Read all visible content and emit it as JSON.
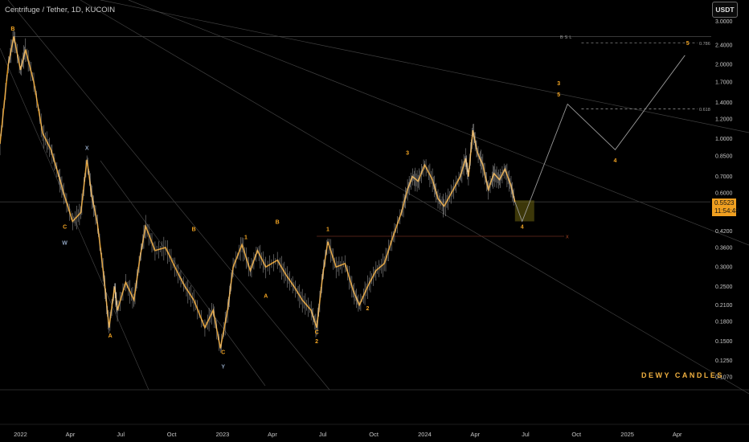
{
  "header": {
    "symbol_title": "Centrifuge / Tether, 1D, KUCOIN",
    "currency_button": "USDT"
  },
  "price_tag": {
    "price": "0.5523",
    "countdown": "11:54:48"
  },
  "watermark": "DEWY CANDLES",
  "colors": {
    "background": "#000000",
    "candle": "#f0a020",
    "wave_label": "#f5a623",
    "corrective_label": "#8fa3bf",
    "trendline": "#5a5a5a",
    "projection": "#9a9a9a"
  },
  "chart_data": {
    "type": "line",
    "scale": "log",
    "ylim": [
      0.095,
      3.1
    ],
    "xlim": [
      "2021-11-25",
      "2025-05-31"
    ],
    "y_ticks": [
      3.0,
      2.4,
      2.0,
      1.7,
      1.4,
      1.2,
      1.0,
      0.85,
      0.7,
      0.6,
      0.42,
      0.36,
      0.3,
      0.25,
      0.21,
      0.18,
      0.15,
      0.125,
      0.107
    ],
    "y_tick_labels": [
      "3.0000",
      "2.4000",
      "2.0000",
      "1.7000",
      "1.4000",
      "1.2000",
      "1.0000",
      "0.8500",
      "0.7000",
      "0.6000",
      "0.4200",
      "0.3600",
      "0.3000",
      "0.2500",
      "0.2100",
      "0.1800",
      "0.1500",
      "0.1250",
      "0.1070"
    ],
    "x_ticks": [
      {
        "label": "2022",
        "date": "2022-01-01"
      },
      {
        "label": "Apr",
        "date": "2022-04-01"
      },
      {
        "label": "Jul",
        "date": "2022-07-01"
      },
      {
        "label": "Oct",
        "date": "2022-10-01"
      },
      {
        "label": "2023",
        "date": "2023-01-01"
      },
      {
        "label": "Apr",
        "date": "2023-04-01"
      },
      {
        "label": "Jul",
        "date": "2023-07-01"
      },
      {
        "label": "Oct",
        "date": "2023-10-01"
      },
      {
        "label": "2024",
        "date": "2024-01-01"
      },
      {
        "label": "Apr",
        "date": "2024-04-01"
      },
      {
        "label": "Jul",
        "date": "2024-07-01"
      },
      {
        "label": "Oct",
        "date": "2024-10-01"
      },
      {
        "label": "2025",
        "date": "2025-01-01"
      },
      {
        "label": "Apr",
        "date": "2025-04-01"
      }
    ],
    "series": [
      {
        "values": [
          {
            "x": "2021-11-25",
            "y": 0.95
          },
          {
            "x": "2021-12-10",
            "y": 2.0
          },
          {
            "x": "2021-12-20",
            "y": 2.6
          },
          {
            "x": "2022-01-01",
            "y": 1.9
          },
          {
            "x": "2022-01-10",
            "y": 2.3
          },
          {
            "x": "2022-01-25",
            "y": 1.7
          },
          {
            "x": "2022-02-10",
            "y": 1.05
          },
          {
            "x": "2022-02-25",
            "y": 0.9
          },
          {
            "x": "2022-03-10",
            "y": 0.72
          },
          {
            "x": "2022-03-20",
            "y": 0.6
          },
          {
            "x": "2022-04-05",
            "y": 0.46
          },
          {
            "x": "2022-04-20",
            "y": 0.5
          },
          {
            "x": "2022-05-01",
            "y": 0.82
          },
          {
            "x": "2022-05-10",
            "y": 0.58
          },
          {
            "x": "2022-05-20",
            "y": 0.45
          },
          {
            "x": "2022-06-01",
            "y": 0.27
          },
          {
            "x": "2022-06-10",
            "y": 0.17
          },
          {
            "x": "2022-06-20",
            "y": 0.25
          },
          {
            "x": "2022-06-25",
            "y": 0.2
          },
          {
            "x": "2022-07-10",
            "y": 0.26
          },
          {
            "x": "2022-07-25",
            "y": 0.22
          },
          {
            "x": "2022-08-05",
            "y": 0.33
          },
          {
            "x": "2022-08-15",
            "y": 0.44
          },
          {
            "x": "2022-09-01",
            "y": 0.35
          },
          {
            "x": "2022-09-20",
            "y": 0.36
          },
          {
            "x": "2022-10-10",
            "y": 0.29
          },
          {
            "x": "2022-10-25",
            "y": 0.25
          },
          {
            "x": "2022-11-10",
            "y": 0.22
          },
          {
            "x": "2022-11-30",
            "y": 0.17
          },
          {
            "x": "2022-12-15",
            "y": 0.2
          },
          {
            "x": "2022-12-28",
            "y": 0.14
          },
          {
            "x": "2023-01-10",
            "y": 0.2
          },
          {
            "x": "2023-01-20",
            "y": 0.3
          },
          {
            "x": "2023-02-05",
            "y": 0.37
          },
          {
            "x": "2023-02-20",
            "y": 0.29
          },
          {
            "x": "2023-03-05",
            "y": 0.35
          },
          {
            "x": "2023-03-20",
            "y": 0.3
          },
          {
            "x": "2023-04-10",
            "y": 0.32
          },
          {
            "x": "2023-04-25",
            "y": 0.28
          },
          {
            "x": "2023-05-10",
            "y": 0.25
          },
          {
            "x": "2023-05-25",
            "y": 0.22
          },
          {
            "x": "2023-06-10",
            "y": 0.2
          },
          {
            "x": "2023-06-20",
            "y": 0.17
          },
          {
            "x": "2023-07-01",
            "y": 0.28
          },
          {
            "x": "2023-07-10",
            "y": 0.38
          },
          {
            "x": "2023-07-25",
            "y": 0.3
          },
          {
            "x": "2023-08-10",
            "y": 0.31
          },
          {
            "x": "2023-08-25",
            "y": 0.24
          },
          {
            "x": "2023-09-05",
            "y": 0.21
          },
          {
            "x": "2023-09-20",
            "y": 0.25
          },
          {
            "x": "2023-10-05",
            "y": 0.29
          },
          {
            "x": "2023-10-20",
            "y": 0.31
          },
          {
            "x": "2023-11-05",
            "y": 0.4
          },
          {
            "x": "2023-11-20",
            "y": 0.5
          },
          {
            "x": "2023-12-01",
            "y": 0.62
          },
          {
            "x": "2023-12-10",
            "y": 0.7
          },
          {
            "x": "2023-12-20",
            "y": 0.67
          },
          {
            "x": "2024-01-01",
            "y": 0.78
          },
          {
            "x": "2024-01-15",
            "y": 0.68
          },
          {
            "x": "2024-01-25",
            "y": 0.57
          },
          {
            "x": "2024-02-05",
            "y": 0.53
          },
          {
            "x": "2024-02-20",
            "y": 0.61
          },
          {
            "x": "2024-03-05",
            "y": 0.7
          },
          {
            "x": "2024-03-15",
            "y": 0.83
          },
          {
            "x": "2024-03-20",
            "y": 0.7
          },
          {
            "x": "2024-03-28",
            "y": 1.08
          },
          {
            "x": "2024-04-05",
            "y": 0.88
          },
          {
            "x": "2024-04-15",
            "y": 0.78
          },
          {
            "x": "2024-04-25",
            "y": 0.62
          },
          {
            "x": "2024-05-05",
            "y": 0.72
          },
          {
            "x": "2024-05-15",
            "y": 0.68
          },
          {
            "x": "2024-05-25",
            "y": 0.75
          },
          {
            "x": "2024-06-05",
            "y": 0.64
          },
          {
            "x": "2024-06-12",
            "y": 0.5523
          }
        ]
      },
      {
        "name": "projection",
        "values": [
          {
            "x": "2024-06-12",
            "y": 0.5523
          },
          {
            "x": "2024-06-25",
            "y": 0.46
          },
          {
            "x": "2024-09-15",
            "y": 1.38
          },
          {
            "x": "2024-12-10",
            "y": 0.9
          },
          {
            "x": "2025-04-15",
            "y": 2.18
          }
        ]
      }
    ],
    "horizontal_levels": [
      {
        "label": "BSL",
        "y": 2.6
      },
      {
        "label": "0.786",
        "y": 2.45
      },
      {
        "label": "0.618",
        "y": 1.32
      },
      {
        "label": "",
        "y": 0.5523
      },
      {
        "label": "X",
        "y": 0.4
      }
    ],
    "wave_labels": [
      {
        "text": "B",
        "x": "2021-12-18",
        "y": 2.75,
        "kind": "wave"
      },
      {
        "text": "C",
        "x": "2022-03-22",
        "y": 0.43,
        "kind": "wave"
      },
      {
        "text": "W",
        "x": "2022-03-22",
        "y": 0.37,
        "kind": "corrective"
      },
      {
        "text": "X",
        "x": "2022-05-01",
        "y": 0.9,
        "kind": "corrective"
      },
      {
        "text": "A",
        "x": "2022-06-12",
        "y": 0.155,
        "kind": "wave"
      },
      {
        "text": "B",
        "x": "2022-11-10",
        "y": 0.42,
        "kind": "wave"
      },
      {
        "text": "C",
        "x": "2023-01-02",
        "y": 0.133,
        "kind": "wave"
      },
      {
        "text": "Y",
        "x": "2023-01-02",
        "y": 0.116,
        "kind": "corrective"
      },
      {
        "text": "1",
        "x": "2023-02-12",
        "y": 0.39,
        "kind": "wave"
      },
      {
        "text": "A",
        "x": "2023-03-20",
        "y": 0.225,
        "kind": "wave"
      },
      {
        "text": "B",
        "x": "2023-04-10",
        "y": 0.45,
        "kind": "wave"
      },
      {
        "text": "C",
        "x": "2023-06-20",
        "y": 0.16,
        "kind": "wave"
      },
      {
        "text": "2",
        "x": "2023-06-20",
        "y": 0.147,
        "kind": "wave"
      },
      {
        "text": "1",
        "x": "2023-07-10",
        "y": 0.42,
        "kind": "wave"
      },
      {
        "text": "2",
        "x": "2023-09-20",
        "y": 0.2,
        "kind": "wave"
      },
      {
        "text": "3",
        "x": "2023-12-01",
        "y": 0.86,
        "kind": "wave"
      },
      {
        "text": "4",
        "x": "2024-06-25",
        "y": 0.43,
        "kind": "wave"
      },
      {
        "text": "3",
        "x": "2024-08-30",
        "y": 1.65,
        "kind": "wave"
      },
      {
        "text": "5",
        "x": "2024-08-30",
        "y": 1.48,
        "kind": "wave"
      },
      {
        "text": "4",
        "x": "2024-12-10",
        "y": 0.8,
        "kind": "wave"
      },
      {
        "text": "5",
        "x": "2025-04-20",
        "y": 2.4,
        "kind": "wave"
      }
    ]
  }
}
